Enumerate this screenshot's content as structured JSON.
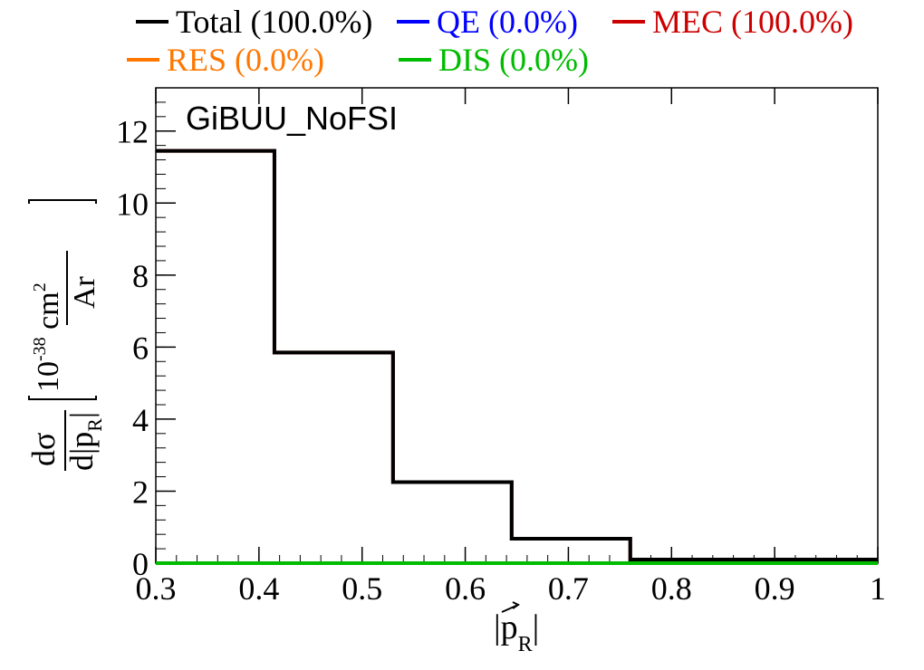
{
  "chart_data": {
    "type": "line",
    "step": true,
    "annotation": "GiBUU_NoFSI",
    "xlabel": "|p_R|",
    "ylabel": "dσ/d|p_R| [10^-38 cm^2/Ar]",
    "xlabel_parts": {
      "bar_left": "|",
      "p": "p",
      "sub": "R",
      "bar_right": "|"
    },
    "ylabel_parts": {
      "num": "dσ",
      "den": "d|p",
      "den_sub": "R",
      "den_close": "|",
      "unit_pre": "10",
      "unit_exp": "-38",
      "unit_cm": " cm",
      "unit_cm_exp": "2",
      "unit_den": "Ar"
    },
    "xlim": [
      0.3,
      1.0
    ],
    "ylim": [
      0,
      13.2
    ],
    "xticks": [
      "0.3",
      "0.4",
      "0.5",
      "0.6",
      "0.7",
      "0.8",
      "0.9",
      "1"
    ],
    "xtick_values": [
      0.3,
      0.4,
      0.5,
      0.6,
      0.7,
      0.8,
      0.9,
      1.0
    ],
    "yticks": [
      "0",
      "2",
      "4",
      "6",
      "8",
      "10",
      "12"
    ],
    "ytick_values": [
      0,
      2,
      4,
      6,
      8,
      10,
      12
    ],
    "bin_edges": [
      0.3,
      0.415,
      0.53,
      0.645,
      0.76,
      1.0
    ],
    "series": [
      {
        "name": "Total (100.0%)",
        "color": "#000000",
        "values": [
          11.45,
          5.85,
          2.25,
          0.68,
          0.1
        ]
      },
      {
        "name": "QE (0.0%)",
        "color": "#0000ff",
        "values": [
          0,
          0,
          0,
          0,
          0
        ]
      },
      {
        "name": "MEC (100.0%)",
        "color": "#cc0000",
        "values": [
          11.45,
          5.85,
          2.25,
          0.68,
          0.1
        ]
      },
      {
        "name": "RES (0.0%)",
        "color": "#ff7700",
        "values": [
          0,
          0,
          0,
          0,
          0
        ]
      },
      {
        "name": "DIS (0.0%)",
        "color": "#00bb00",
        "values": [
          0,
          0,
          0,
          0,
          0
        ]
      }
    ],
    "legend": [
      {
        "label": "Total (100.0%)",
        "color": "#000000"
      },
      {
        "label": "QE (0.0%)",
        "color": "#0000ff"
      },
      {
        "label": "MEC (100.0%)",
        "color": "#cc0000"
      },
      {
        "label": "RES (0.0%)",
        "color": "#ff7700"
      },
      {
        "label": "DIS (0.0%)",
        "color": "#00bb00"
      }
    ],
    "legend_placement": "top",
    "grid": false
  }
}
